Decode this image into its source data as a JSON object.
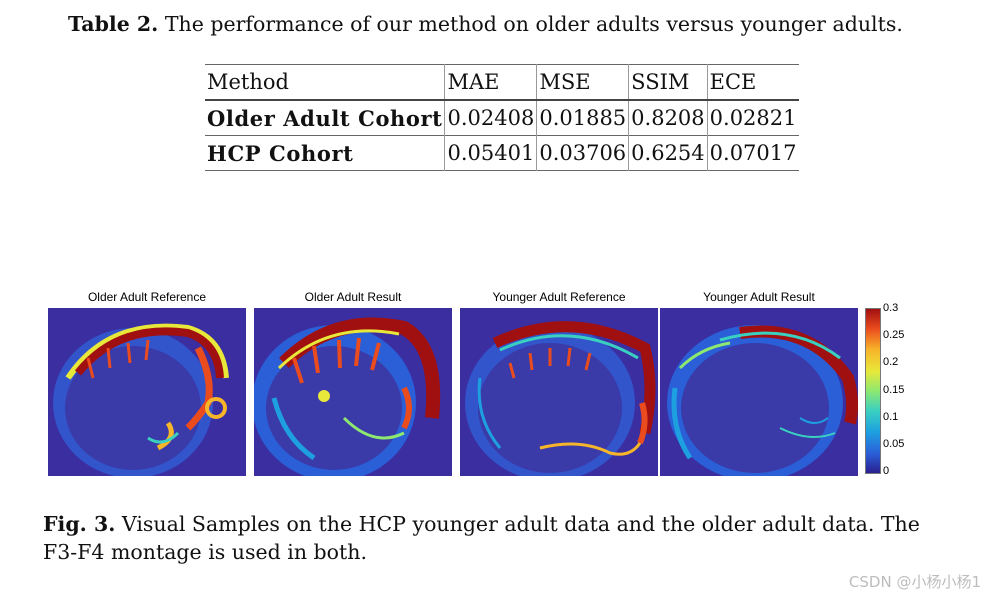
{
  "table_caption": {
    "label": "Table 2.",
    "text": "The performance of our method on older adults versus younger adults."
  },
  "table": {
    "headers": [
      "Method",
      "MAE",
      "MSE",
      "SSIM",
      "ECE"
    ],
    "rows": [
      [
        "Older Adult Cohort",
        "0.02408",
        "0.01885",
        "0.8208",
        "0.02821"
      ],
      [
        "HCP Cohort",
        "0.05401",
        "0.03706",
        "0.6254",
        "0.07017"
      ]
    ]
  },
  "figure": {
    "panels": [
      {
        "title": "Older Adult Reference"
      },
      {
        "title": "Older Adult Result"
      },
      {
        "title": "Younger Adult Reference"
      },
      {
        "title": "Younger Adult Result"
      }
    ],
    "colorbar_ticks": [
      "0.3",
      "0.25",
      "0.2",
      "0.15",
      "0.1",
      "0.05",
      "0"
    ],
    "colormap": [
      "#2a1f8f",
      "#2a5fd8",
      "#1ea0e0",
      "#3ad0c0",
      "#8ee870",
      "#e8e83a",
      "#f7b52a",
      "#ea4c1e",
      "#a01010"
    ]
  },
  "figure_caption": {
    "label": "Fig. 3.",
    "text": "Visual Samples on the HCP younger adult data and the older adult data. The F3-F4 montage is used in both."
  },
  "watermark": "CSDN @小杨小杨1"
}
